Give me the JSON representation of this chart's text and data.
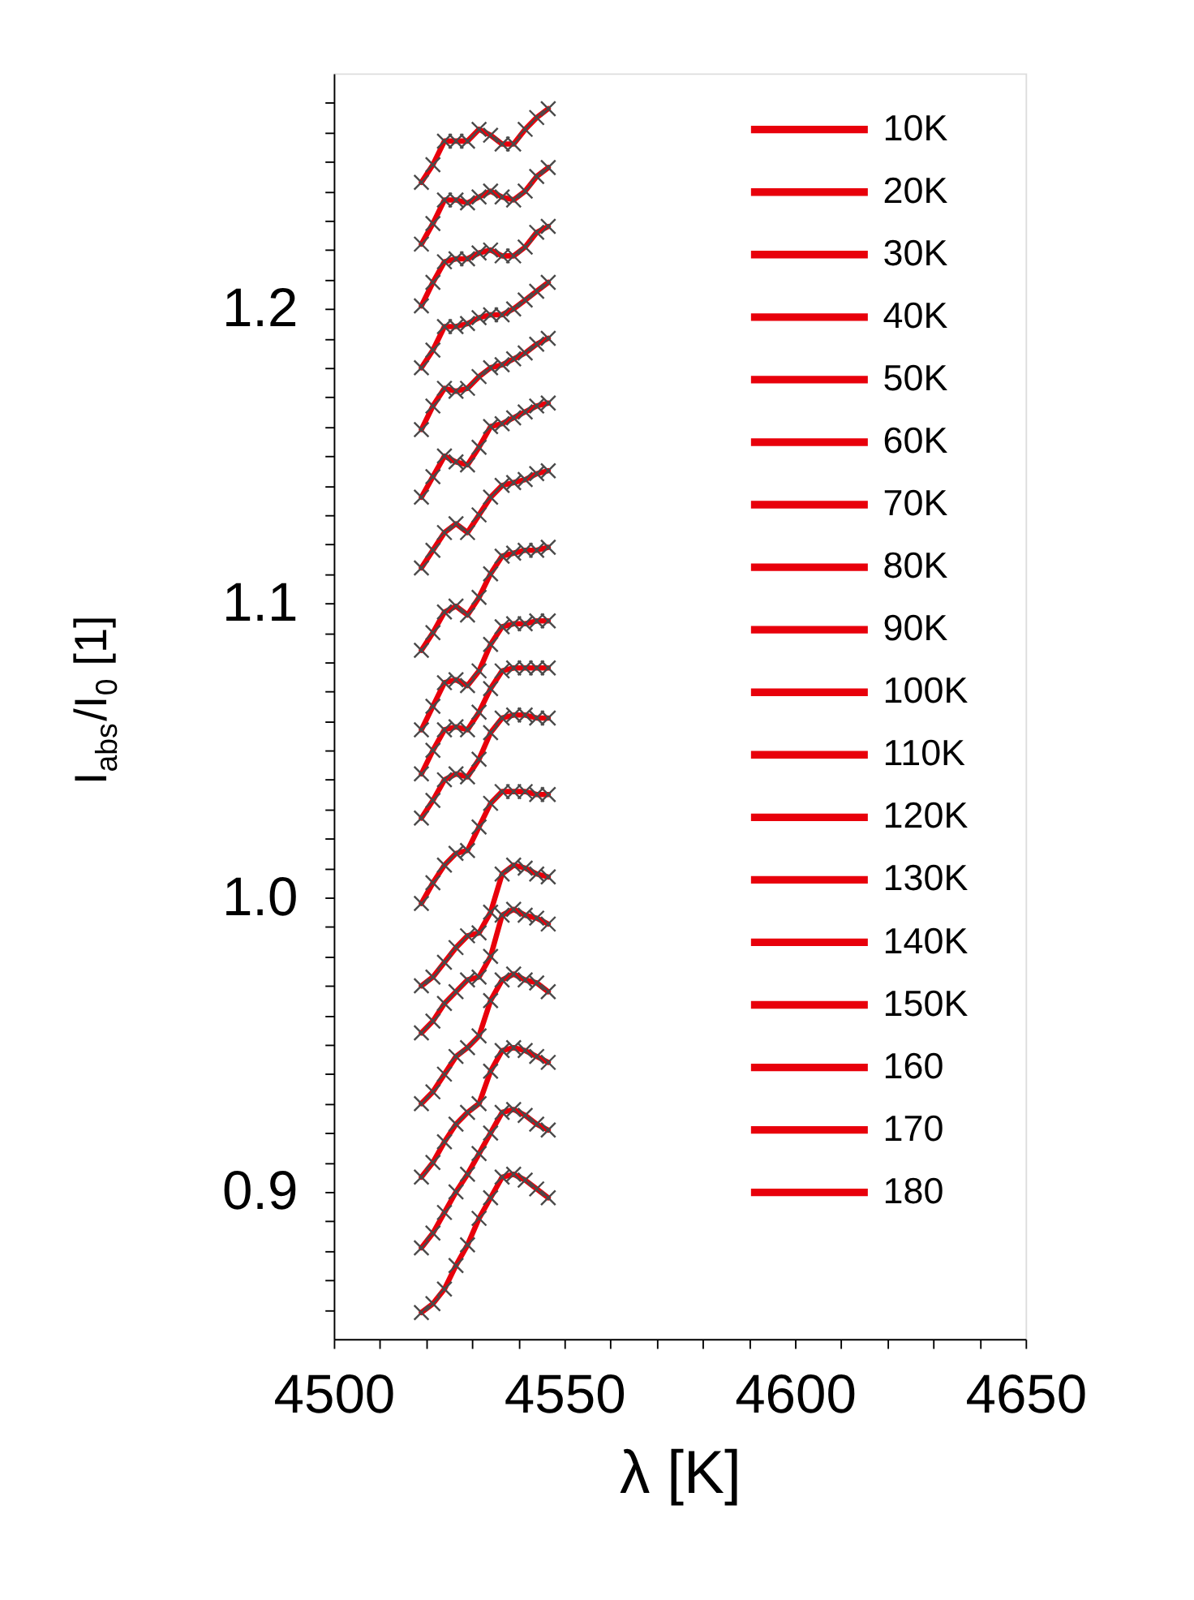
{
  "chart_data": {
    "type": "line",
    "xlabel": "λ [K]",
    "ylabel": "I$_{abs}$/I$_{0}$ [1]",
    "x": [
      4519,
      4521.5,
      4524,
      4526.5,
      4529,
      4531.5,
      4534,
      4536.5,
      4539,
      4541.5,
      4544,
      4546.5
    ],
    "series": [
      {
        "name": "10K",
        "color": "#e8000b",
        "values": [
          1.243,
          1.249,
          1.257,
          1.257,
          1.257,
          1.261,
          1.259,
          1.256,
          1.256,
          1.261,
          1.265,
          1.268
        ]
      },
      {
        "name": "20K",
        "color": "#e8000b",
        "values": [
          1.222,
          1.229,
          1.237,
          1.237,
          1.236,
          1.238,
          1.24,
          1.238,
          1.237,
          1.24,
          1.245,
          1.248
        ]
      },
      {
        "name": "30K",
        "color": "#e8000b",
        "values": [
          1.201,
          1.209,
          1.216,
          1.217,
          1.217,
          1.219,
          1.22,
          1.218,
          1.218,
          1.221,
          1.226,
          1.228
        ]
      },
      {
        "name": "40K",
        "color": "#e8000b",
        "values": [
          1.18,
          1.186,
          1.194,
          1.194,
          1.195,
          1.197,
          1.198,
          1.198,
          1.2,
          1.203,
          1.206,
          1.209
        ]
      },
      {
        "name": "50K",
        "color": "#e8000b",
        "values": [
          1.159,
          1.167,
          1.173,
          1.172,
          1.173,
          1.177,
          1.18,
          1.181,
          1.183,
          1.185,
          1.188,
          1.19
        ]
      },
      {
        "name": "60K",
        "color": "#e8000b",
        "values": [
          1.136,
          1.143,
          1.15,
          1.148,
          1.147,
          1.153,
          1.16,
          1.161,
          1.163,
          1.165,
          1.167,
          1.168
        ]
      },
      {
        "name": "70K",
        "color": "#e8000b",
        "values": [
          1.112,
          1.118,
          1.124,
          1.127,
          1.124,
          1.13,
          1.136,
          1.14,
          1.141,
          1.142,
          1.144,
          1.145
        ]
      },
      {
        "name": "80K",
        "color": "#e8000b",
        "values": [
          1.084,
          1.09,
          1.097,
          1.099,
          1.096,
          1.102,
          1.11,
          1.116,
          1.117,
          1.118,
          1.118,
          1.119
        ]
      },
      {
        "name": "90K",
        "color": "#e8000b",
        "values": [
          1.057,
          1.065,
          1.073,
          1.074,
          1.072,
          1.077,
          1.086,
          1.092,
          1.093,
          1.093,
          1.094,
          1.094
        ]
      },
      {
        "name": "100K",
        "color": "#e8000b",
        "values": [
          1.042,
          1.05,
          1.057,
          1.058,
          1.057,
          1.063,
          1.071,
          1.077,
          1.078,
          1.078,
          1.078,
          1.078
        ]
      },
      {
        "name": "110K",
        "color": "#e8000b",
        "values": [
          1.027,
          1.033,
          1.04,
          1.042,
          1.041,
          1.047,
          1.056,
          1.061,
          1.062,
          1.062,
          1.061,
          1.061
        ]
      },
      {
        "name": "120K",
        "color": "#e8000b",
        "values": [
          0.998,
          1.005,
          1.011,
          1.015,
          1.016,
          1.024,
          1.032,
          1.036,
          1.036,
          1.036,
          1.035,
          1.035
        ]
      },
      {
        "name": "130K",
        "color": "#e8000b",
        "values": [
          0.97,
          0.973,
          0.978,
          0.983,
          0.987,
          0.988,
          0.995,
          1.008,
          1.011,
          1.01,
          1.008,
          1.007
        ]
      },
      {
        "name": "140K",
        "color": "#e8000b",
        "values": [
          0.954,
          0.958,
          0.964,
          0.968,
          0.972,
          0.973,
          0.98,
          0.994,
          0.996,
          0.994,
          0.993,
          0.991
        ]
      },
      {
        "name": "150K",
        "color": "#e8000b",
        "values": [
          0.93,
          0.934,
          0.94,
          0.946,
          0.949,
          0.953,
          0.965,
          0.972,
          0.974,
          0.972,
          0.971,
          0.968
        ]
      },
      {
        "name": "160",
        "color": "#e8000b",
        "values": [
          0.905,
          0.91,
          0.917,
          0.923,
          0.927,
          0.93,
          0.941,
          0.948,
          0.949,
          0.948,
          0.946,
          0.944
        ]
      },
      {
        "name": "170",
        "color": "#e8000b",
        "values": [
          0.881,
          0.886,
          0.893,
          0.9,
          0.906,
          0.913,
          0.92,
          0.927,
          0.928,
          0.926,
          0.923,
          0.921
        ]
      },
      {
        "name": "180",
        "color": "#e8000b",
        "values": [
          0.859,
          0.862,
          0.867,
          0.875,
          0.882,
          0.891,
          0.898,
          0.905,
          0.906,
          0.904,
          0.901,
          0.898
        ]
      }
    ],
    "xlim": [
      4500,
      4650
    ],
    "xticks": [
      4500,
      {
        "value": 4510,
        "label": null
      },
      {
        "value": 4520,
        "label": null
      },
      {
        "value": 4530,
        "label": null
      },
      {
        "value": 4540,
        "label": null
      },
      4550,
      {
        "value": 4560,
        "label": null
      },
      {
        "value": 4570,
        "label": null
      },
      {
        "value": 4580,
        "label": null
      },
      {
        "value": 4590,
        "label": null
      },
      4600,
      {
        "value": 4610,
        "label": null
      },
      {
        "value": 4620,
        "label": null
      },
      {
        "value": 4630,
        "label": null
      },
      {
        "value": 4640,
        "label": null
      },
      4650
    ],
    "ylim": [
      0.85,
      1.28
    ],
    "yticks": [
      {
        "value": 0.86,
        "label": null
      },
      {
        "value": 0.87,
        "label": null
      },
      {
        "value": 0.88,
        "label": null
      },
      {
        "value": 0.89,
        "label": null
      },
      0.9,
      {
        "value": 0.91,
        "label": null
      },
      {
        "value": 0.92,
        "label": null
      },
      {
        "value": 0.93,
        "label": null
      },
      {
        "value": 0.94,
        "label": null
      },
      {
        "value": 0.95,
        "label": null
      },
      {
        "value": 0.96,
        "label": null
      },
      {
        "value": 0.97,
        "label": null
      },
      {
        "value": 0.98,
        "label": null
      },
      {
        "value": 0.99,
        "label": null
      },
      {
        "value": 1.0,
        "label": "1.0"
      },
      {
        "value": 1.01,
        "label": null
      },
      {
        "value": 1.02,
        "label": null
      },
      {
        "value": 1.03,
        "label": null
      },
      {
        "value": 1.04,
        "label": null
      },
      {
        "value": 1.05,
        "label": null
      },
      {
        "value": 1.06,
        "label": null
      },
      {
        "value": 1.07,
        "label": null
      },
      {
        "value": 1.08,
        "label": null
      },
      {
        "value": 1.09,
        "label": null
      },
      1.1,
      {
        "value": 1.11,
        "label": null
      },
      {
        "value": 1.12,
        "label": null
      },
      {
        "value": 1.13,
        "label": null
      },
      {
        "value": 1.14,
        "label": null
      },
      {
        "value": 1.15,
        "label": null
      },
      {
        "value": 1.16,
        "label": null
      },
      {
        "value": 1.17,
        "label": null
      },
      {
        "value": 1.18,
        "label": null
      },
      {
        "value": 1.19,
        "label": null
      },
      1.2,
      {
        "value": 1.21,
        "label": null
      },
      {
        "value": 1.22,
        "label": null
      },
      {
        "value": 1.23,
        "label": null
      },
      {
        "value": 1.24,
        "label": null
      },
      {
        "value": 1.25,
        "label": null
      },
      {
        "value": 1.26,
        "label": null
      },
      {
        "value": 1.27,
        "label": null
      }
    ],
    "marker": "cross",
    "line_style": "solid",
    "legend": "top right",
    "grid": false
  }
}
